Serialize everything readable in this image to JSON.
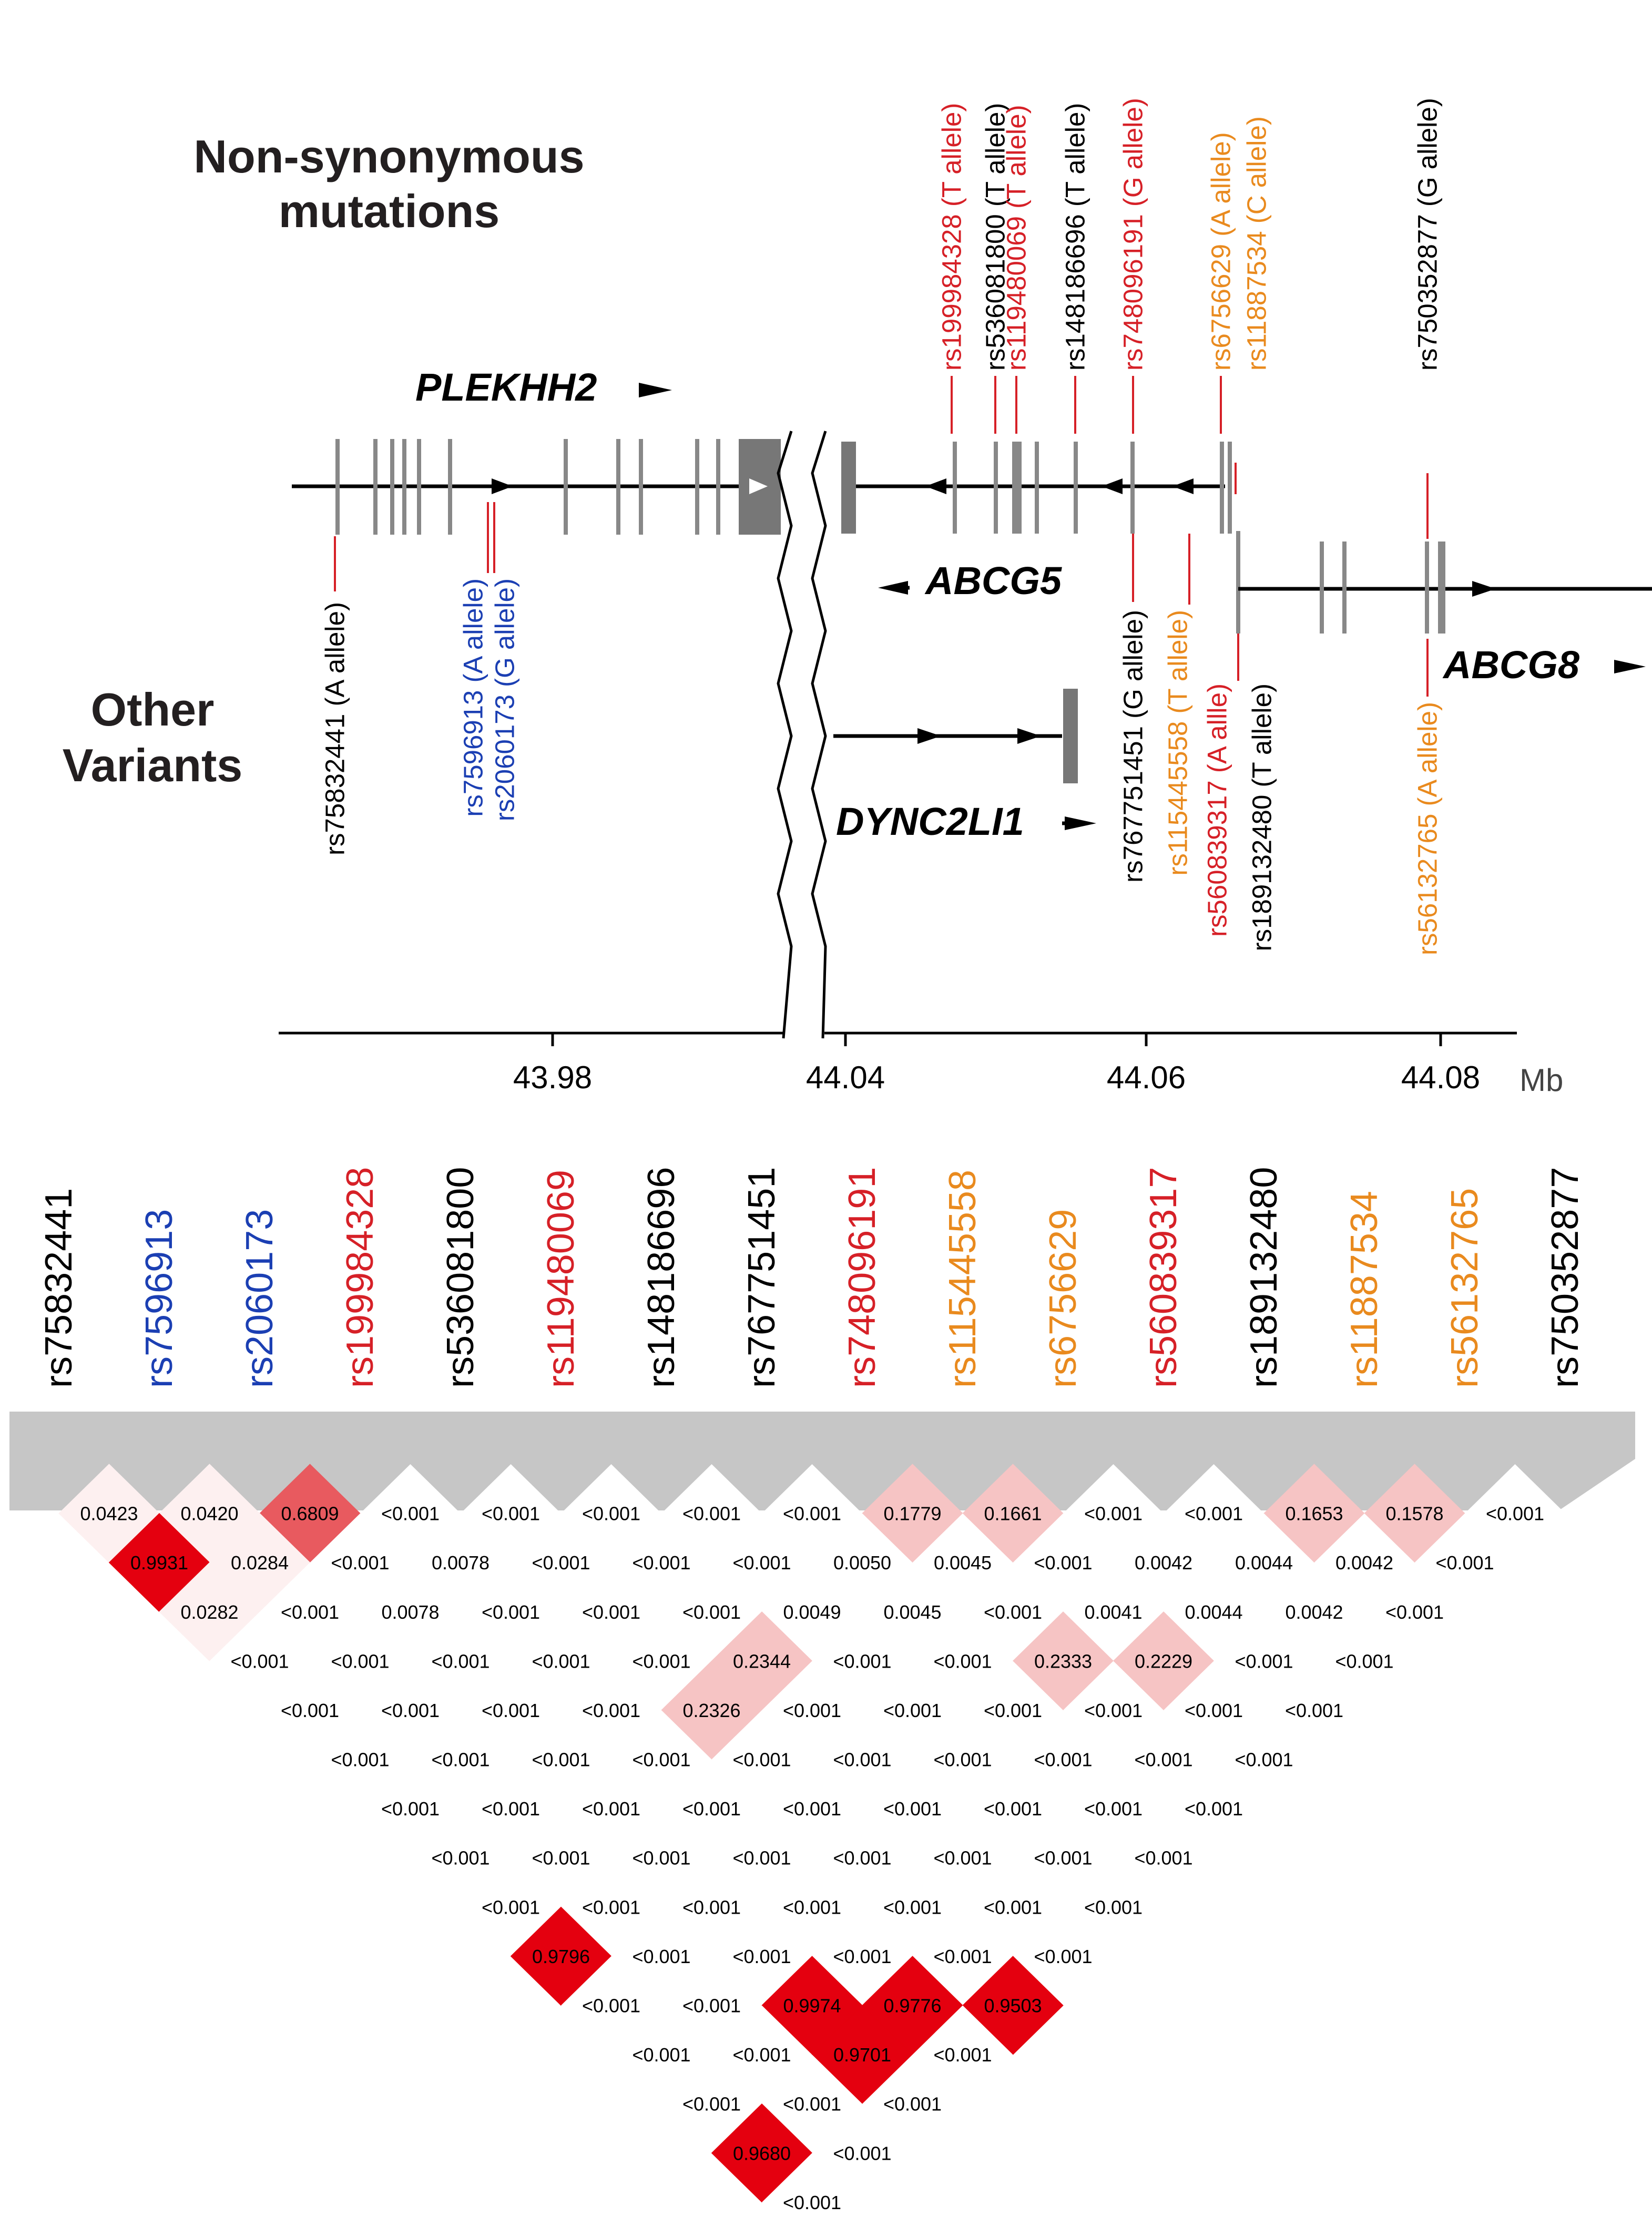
{
  "headings": {
    "nonsyn_line1": "Non-synonymous",
    "nonsyn_line2": "mutations",
    "other_line1": "Other",
    "other_line2": "Variants"
  },
  "genes": {
    "plekhh2": "PLEKHH2",
    "abcg5": "ABCG5",
    "abcg8": "ABCG8",
    "dync2li1": "DYNC2LI1"
  },
  "colors": {
    "black": "#000000",
    "red": "#d62027",
    "blue": "#1b3fb3",
    "orange": "#e98a1e",
    "grey": "#808080",
    "ld_max": "#e4000f"
  },
  "axis": {
    "ticks": [
      "43.98",
      "44.04",
      "44.06",
      "44.08"
    ],
    "unit": "Mb"
  },
  "annotations": {
    "top": [
      {
        "text": "rs199984328 (T allele)",
        "color": "red"
      },
      {
        "text": "rs536081800 (T allele)",
        "color": "black"
      },
      {
        "text": "rs119480069 (T allele)",
        "color": "red"
      },
      {
        "text": "rs148186696 (T allele)",
        "color": "black"
      },
      {
        "text": "rs748096191 (G allele)",
        "color": "red"
      },
      {
        "text": "rs6756629 (A allele)",
        "color": "orange"
      },
      {
        "text": "rs11887534 (C allele)",
        "color": "orange"
      },
      {
        "text": "rs750352877 (G allele)",
        "color": "black"
      }
    ],
    "bottom": [
      {
        "text": "rs75832441 (A allele)",
        "color": "black"
      },
      {
        "text": "rs7596913 (A allele)",
        "color": "blue"
      },
      {
        "text": "rs2060173 (G allele)",
        "color": "blue"
      },
      {
        "text": "rs767751451 (G allele)",
        "color": "black"
      },
      {
        "text": "rs115445558 (T allele)",
        "color": "orange"
      },
      {
        "text": "rs560839317 (A allle)",
        "color": "red"
      },
      {
        "text": "rs189132480 (T allele)",
        "color": "black"
      },
      {
        "text": "rs56132765 (A allele)",
        "color": "orange"
      }
    ]
  },
  "snps": [
    {
      "id": "rs75832441",
      "color": "black"
    },
    {
      "id": "rs7596913",
      "color": "blue"
    },
    {
      "id": "rs2060173",
      "color": "blue"
    },
    {
      "id": "rs199984328",
      "color": "red"
    },
    {
      "id": "rs536081800",
      "color": "black"
    },
    {
      "id": "rs119480069",
      "color": "red"
    },
    {
      "id": "rs148186696",
      "color": "black"
    },
    {
      "id": "rs767751451",
      "color": "black"
    },
    {
      "id": "rs748096191",
      "color": "red"
    },
    {
      "id": "rs115445558",
      "color": "orange"
    },
    {
      "id": "rs6756629",
      "color": "orange"
    },
    {
      "id": "rs560839317",
      "color": "red"
    },
    {
      "id": "rs189132480",
      "color": "black"
    },
    {
      "id": "rs11887534",
      "color": "orange"
    },
    {
      "id": "rs56132765",
      "color": "orange"
    },
    {
      "id": "rs750352877",
      "color": "black"
    }
  ],
  "ld_matrix": [
    [
      "0.0423",
      "0.0420",
      "0.6809",
      "<0.001",
      "<0.001",
      "<0.001",
      "<0.001",
      "<0.001",
      "0.1779",
      "0.1661",
      "<0.001",
      "<0.001",
      "0.1653",
      "0.1578",
      "<0.001"
    ],
    [
      "0.9931",
      "0.0284",
      "<0.001",
      "0.0078",
      "<0.001",
      "<0.001",
      "<0.001",
      "0.0050",
      "0.0045",
      "<0.001",
      "0.0042",
      "0.0044",
      "0.0042",
      "<0.001"
    ],
    [
      "0.0282",
      "<0.001",
      "0.0078",
      "<0.001",
      "<0.001",
      "<0.001",
      "0.0049",
      "0.0045",
      "<0.001",
      "0.0041",
      "0.0044",
      "0.0042",
      "<0.001"
    ],
    [
      "<0.001",
      "<0.001",
      "<0.001",
      "<0.001",
      "<0.001",
      "0.2344",
      "<0.001",
      "<0.001",
      "0.2333",
      "0.2229",
      "<0.001",
      "<0.001"
    ],
    [
      "<0.001",
      "<0.001",
      "<0.001",
      "<0.001",
      "0.2326",
      "<0.001",
      "<0.001",
      "<0.001",
      "<0.001",
      "<0.001",
      "<0.001"
    ],
    [
      "<0.001",
      "<0.001",
      "<0.001",
      "<0.001",
      "<0.001",
      "<0.001",
      "<0.001",
      "<0.001",
      "<0.001",
      "<0.001"
    ],
    [
      "<0.001",
      "<0.001",
      "<0.001",
      "<0.001",
      "<0.001",
      "<0.001",
      "<0.001",
      "<0.001",
      "<0.001"
    ],
    [
      "<0.001",
      "<0.001",
      "<0.001",
      "<0.001",
      "<0.001",
      "<0.001",
      "<0.001",
      "<0.001"
    ],
    [
      "<0.001",
      "<0.001",
      "<0.001",
      "<0.001",
      "<0.001",
      "<0.001",
      "<0.001"
    ],
    [
      "0.9796",
      "<0.001",
      "<0.001",
      "<0.001",
      "<0.001",
      "<0.001"
    ],
    [
      "<0.001",
      "<0.001",
      "0.9974",
      "0.9776",
      "0.9503"
    ],
    [
      "<0.001",
      "<0.001",
      "0.9701",
      "<0.001"
    ],
    [
      "<0.001",
      "<0.001",
      "<0.001"
    ],
    [
      "0.9680",
      "<0.001"
    ],
    [
      "<0.001"
    ]
  ]
}
